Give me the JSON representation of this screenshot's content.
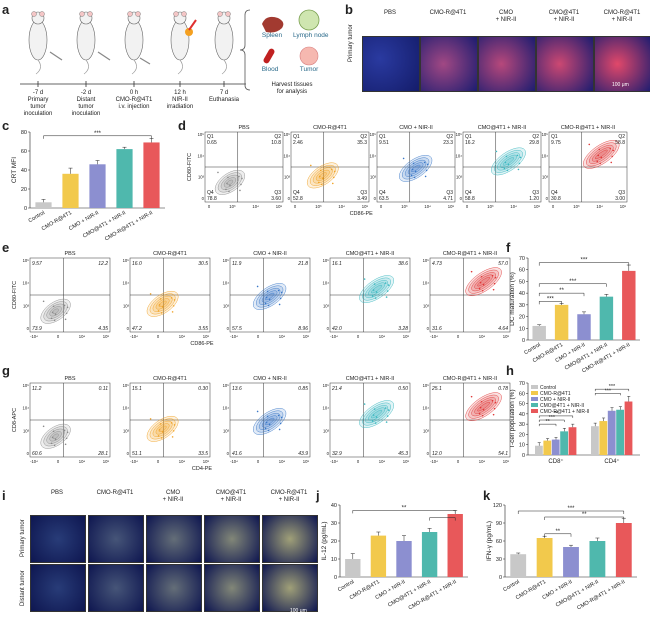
{
  "figure_title": "",
  "panels": {
    "a": "a",
    "b": "b",
    "c": "c",
    "d": "d",
    "e": "e",
    "f": "f",
    "g": "g",
    "h": "h",
    "i": "i",
    "j": "j",
    "k": "k"
  },
  "timeline": {
    "steps": [
      {
        "time": "-7 d",
        "desc": "Primary\ntumor\ninoculation"
      },
      {
        "time": "-2 d",
        "desc": "Distant\ntumor\ninoculation"
      },
      {
        "time": "0 h",
        "desc": "CMO-R@4T1\ni.v. injection"
      },
      {
        "time": "12 h",
        "desc": "NIR-II\nirradiation"
      },
      {
        "time": "7 d",
        "desc": "Euthanasia"
      }
    ],
    "tissues": [
      "Spleen",
      "Lymph node",
      "Blood",
      "Tumor"
    ],
    "harvest": "Harvest tissues\nfor analysis"
  },
  "groups": [
    "PBS",
    "CMO-R@4T1",
    "CMO\n+ NIR-II",
    "CMO@4T1\n+ NIR-II",
    "CMO-R@4T1\n+ NIR-II"
  ],
  "groups_inline": [
    "PBS",
    "CMO-R@4T1",
    "CMO + NIR-II",
    "CMO@4T1 + NIR-II",
    "CMO-R@4T1 + NIR-II"
  ],
  "bar_groups": [
    "Control",
    "CMO-R@4T1",
    "CMO + NIR-II",
    "CMO@4T1 + NIR-II",
    "CMO-R@4T1 + NIR-II"
  ],
  "bar_groups_k": [
    "Control",
    "CMO-R@4T1",
    "CMO + NIR-II",
    "CMO@4T1 + NIR-II",
    "CMO-R@4T1 + NIR-II"
  ],
  "b": {
    "row_label": "Primary tumor",
    "scale": "100 μm"
  },
  "i": {
    "rows": [
      "Primary tumor",
      "Distant tumor"
    ],
    "scale": "100 μm"
  },
  "colors": {
    "grey": "#c8c8c8",
    "yellow": "#f2c94c",
    "purple": "#8c8fd0",
    "teal": "#4fb8ad",
    "red": "#e8585a"
  },
  "flow_colors": [
    "#8a8a8a",
    "#f0a020",
    "#3a78c8",
    "#3ab8c0",
    "#e03838"
  ],
  "d": {
    "ylabel": "CD80-FITC",
    "xlabel": "CD86-PE",
    "yticks": [
      "10⁵",
      "10⁴",
      "10³",
      "0"
    ],
    "xticks": [
      "0",
      "10³",
      "10⁴",
      "10⁵"
    ],
    "quads": [
      {
        "Q1": "0.65",
        "Q2": "10.8",
        "Q4": "78.8",
        "Q3": "3.60"
      },
      {
        "Q1": "2.46",
        "Q2": "35.3",
        "Q4": "52.8",
        "Q3": "3.49"
      },
      {
        "Q1": "9.51",
        "Q2": "23.3",
        "Q4": "63.5",
        "Q3": "4.71"
      },
      {
        "Q1": "16.2",
        "Q2": "29.8",
        "Q4": "58.8",
        "Q3": "1.20"
      },
      {
        "Q1": "9.75",
        "Q2": "58.8",
        "Q4": "30.8",
        "Q3": "3.00"
      }
    ],
    "qnames": [
      "Q1",
      "Q2",
      "Q4",
      "Q3"
    ]
  },
  "e": {
    "ylabel": "CD80-FITC",
    "xlabel": "CD86-PE",
    "yticks": [
      "10⁵",
      "10⁴",
      "10³",
      "0"
    ],
    "xticks": [
      "-10⁴",
      "0",
      "10⁴",
      "10⁵"
    ],
    "quads": [
      {
        "UL": "9.57",
        "UR": "12.2",
        "LL": "73.9",
        "LR": "4.35"
      },
      {
        "UL": "16.0",
        "UR": "30.5",
        "LL": "47.2",
        "LR": "3.55"
      },
      {
        "UL": "11.9",
        "UR": "21.8",
        "LL": "57.5",
        "LR": "8.96"
      },
      {
        "UL": "16.1",
        "UR": "38.6",
        "LL": "42.0",
        "LR": "3.28"
      },
      {
        "UL": "4.73",
        "UR": "57.0",
        "LL": "31.6",
        "LR": "4.64"
      }
    ]
  },
  "g": {
    "ylabel": "CD8-APC",
    "xlabel": "CD4-PE",
    "yticks": [
      "10⁵",
      "10⁴",
      "10³",
      "0"
    ],
    "xticks": [
      "-10⁴",
      "0",
      "10⁴",
      "10⁵"
    ],
    "quads": [
      {
        "UL": "11.2",
        "UR": "0.11",
        "LL": "60.6",
        "LR": "28.1"
      },
      {
        "UL": "15.1",
        "UR": "0.30",
        "LL": "51.1",
        "LR": "33.5"
      },
      {
        "UL": "13.6",
        "UR": "0.85",
        "LL": "41.6",
        "LR": "43.9"
      },
      {
        "UL": "21.4",
        "UR": "0.50",
        "LL": "32.9",
        "LR": "45.3"
      },
      {
        "UL": "25.1",
        "UR": "0.78",
        "LL": "12.0",
        "LR": "54.1"
      }
    ]
  },
  "chart_data": [
    {
      "panel": "c",
      "type": "bar",
      "title": "",
      "ylabel": "CRT MFI",
      "xlabel": "",
      "categories": [
        "Control",
        "CMO-R@4T1",
        "CMO + NIR-II",
        "CMO@4T1 + NIR-II",
        "CMO-R@4T1 + NIR-II"
      ],
      "values": [
        6,
        36,
        46,
        62,
        69
      ],
      "errors": [
        3,
        6,
        4,
        2,
        4
      ],
      "ylim": [
        0,
        80
      ],
      "yticks": [
        0,
        20,
        40,
        60,
        80
      ],
      "sig": [
        "***"
      ]
    },
    {
      "panel": "f",
      "type": "bar",
      "title": "",
      "ylabel": "DC maturation (%)",
      "xlabel": "",
      "categories": [
        "Control",
        "CMO-R@4T1",
        "CMO + NIR-II",
        "CMO@4T1 + NIR-II",
        "CMO-R@4T1 + NIR-II"
      ],
      "values": [
        12,
        30,
        22,
        37,
        59
      ],
      "errors": [
        1,
        1,
        2,
        2,
        5
      ],
      "ylim": [
        0,
        70
      ],
      "yticks": [
        0,
        10,
        20,
        30,
        40,
        50,
        60,
        70
      ],
      "sig": [
        "***",
        "**",
        "***",
        "***"
      ]
    },
    {
      "panel": "h",
      "type": "bar",
      "title": "",
      "ylabel": "T-cell population (%)",
      "xlabel": "",
      "categories": [
        "CD8⁺",
        "CD4⁺"
      ],
      "series": [
        {
          "name": "Control",
          "values": [
            9,
            28
          ],
          "errors": [
            3,
            3
          ]
        },
        {
          "name": "CMO-R@4T1",
          "values": [
            14,
            33
          ],
          "errors": [
            2,
            3
          ]
        },
        {
          "name": "CMO + NIR-II",
          "values": [
            15,
            43
          ],
          "errors": [
            2,
            3
          ]
        },
        {
          "name": "CMO@4T1 + NIR-II",
          "values": [
            23,
            44
          ],
          "errors": [
            3,
            3
          ]
        },
        {
          "name": "CMO-R@4T1 + NIR-II",
          "values": [
            27,
            52
          ],
          "errors": [
            3,
            5
          ]
        }
      ],
      "ylim": [
        0,
        70
      ],
      "yticks": [
        0,
        10,
        20,
        30,
        40,
        50,
        60,
        70
      ],
      "sig": [
        "**",
        "***",
        "***",
        "***",
        "**"
      ]
    },
    {
      "panel": "j",
      "type": "bar",
      "title": "",
      "ylabel": "IL-12 (pg/mL)",
      "xlabel": "",
      "categories": [
        "Control",
        "CMO-R@4T1",
        "CMO + NIR-II",
        "CMO@4T1 + NIR-II",
        "CMO-R@4T1 + NIR-II"
      ],
      "values": [
        10,
        23,
        20,
        25,
        35
      ],
      "errors": [
        3,
        2,
        3,
        2,
        2
      ],
      "ylim": [
        0,
        40
      ],
      "yticks": [
        0,
        10,
        20,
        30,
        40
      ],
      "sig": [
        "**"
      ]
    },
    {
      "panel": "k",
      "type": "bar",
      "title": "",
      "ylabel": "IFN-γ (pg/mL)",
      "xlabel": "",
      "categories": [
        "Control",
        "CMO-R@4T1",
        "CMO + NIR-II",
        "CMO@4T1 + NIR-II",
        "CMO-R@4T1 + NIR-II"
      ],
      "values": [
        38,
        65,
        50,
        60,
        90
      ],
      "errors": [
        2,
        3,
        3,
        5,
        8
      ],
      "ylim": [
        0,
        120
      ],
      "yticks": [
        0,
        30,
        60,
        90,
        120
      ],
      "sig": [
        "***",
        "**",
        "**"
      ]
    }
  ]
}
